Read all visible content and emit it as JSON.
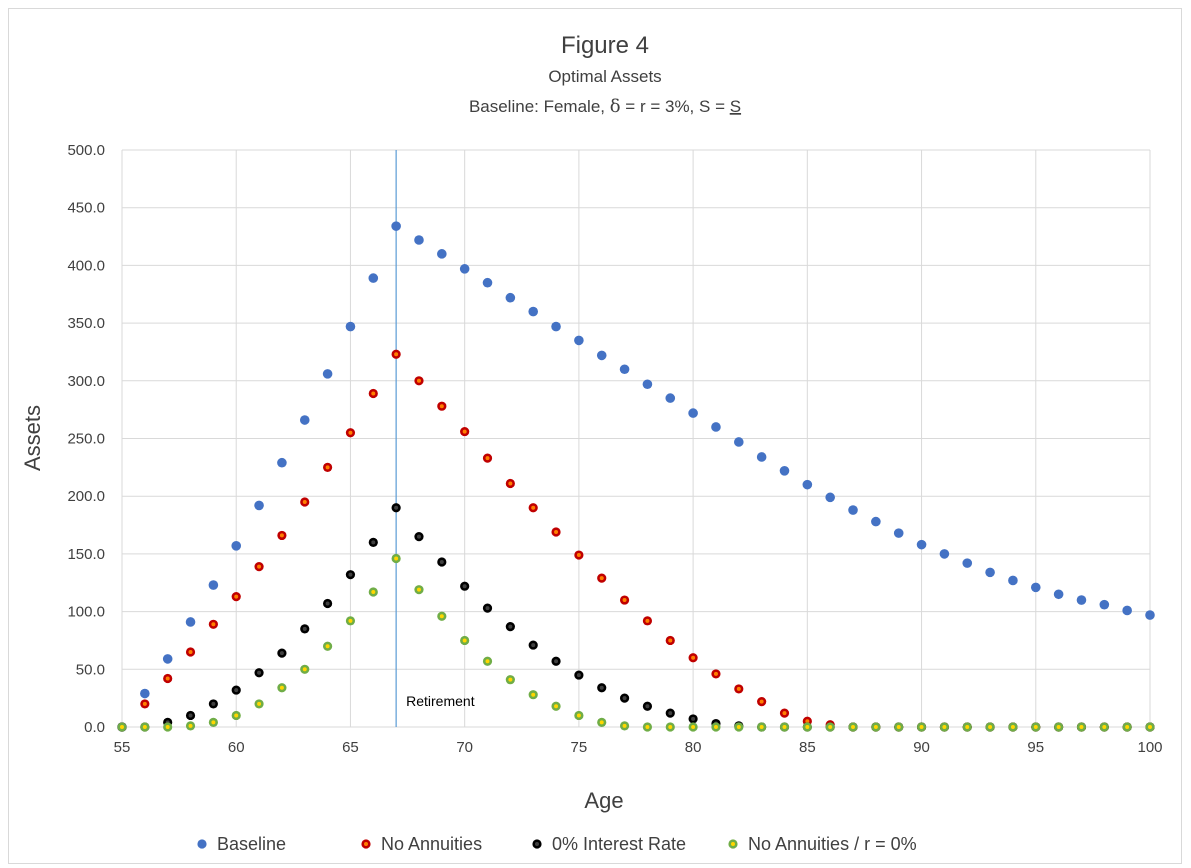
{
  "chart_data": {
    "type": "scatter",
    "title": "Figure 4",
    "subtitle": "Optimal Assets",
    "subtitle2_prefix": "Baseline: Female, ",
    "subtitle2_delta": "δ",
    "subtitle2_mid": " = r = 3%, S = ",
    "subtitle2_s": "S",
    "xlabel": "Age",
    "ylabel": "Assets",
    "xlim": [
      55,
      100
    ],
    "ylim": [
      0,
      500
    ],
    "xticks": [
      55,
      60,
      65,
      70,
      75,
      80,
      85,
      90,
      95,
      100
    ],
    "xtick_labels": [
      "55",
      "60",
      "65",
      "70",
      "75",
      "80",
      "85",
      "90",
      "95",
      "100"
    ],
    "yticks": [
      0,
      50,
      100,
      150,
      200,
      250,
      300,
      350,
      400,
      450,
      500
    ],
    "ytick_labels": [
      "0.0",
      "50.0",
      "100.0",
      "150.0",
      "200.0",
      "250.0",
      "300.0",
      "350.0",
      "400.0",
      "450.0",
      "500.0"
    ],
    "vertical_gridlines": true,
    "horizontal_gridlines": true,
    "legend_position": "bottom",
    "retirement_line_x": 67,
    "retirement_label": "Retirement",
    "retirement_line_color": "#5b9bd5",
    "x": [
      55,
      56,
      57,
      58,
      59,
      60,
      61,
      62,
      63,
      64,
      65,
      66,
      67,
      68,
      69,
      70,
      71,
      72,
      73,
      74,
      75,
      76,
      77,
      78,
      79,
      80,
      81,
      82,
      83,
      84,
      85,
      86,
      87,
      88,
      89,
      90,
      91,
      92,
      93,
      94,
      95,
      96,
      97,
      98,
      99,
      100
    ],
    "series": [
      {
        "name": "Baseline",
        "color": "#4472c4",
        "values": [
          0,
          29,
          59,
          91,
          123,
          157,
          192,
          229,
          266,
          306,
          347,
          389,
          434,
          422,
          410,
          397,
          385,
          372,
          360,
          347,
          335,
          322,
          310,
          297,
          285,
          272,
          260,
          247,
          234,
          222,
          210,
          199,
          188,
          178,
          168,
          158,
          150,
          142,
          134,
          127,
          121,
          115,
          110,
          106,
          101,
          97
        ]
      },
      {
        "name": "No Annuities",
        "color": "#c00000",
        "inner": "#ff7f00",
        "values": [
          0,
          20,
          42,
          65,
          89,
          113,
          139,
          166,
          195,
          225,
          255,
          289,
          323,
          300,
          278,
          256,
          233,
          211,
          190,
          169,
          149,
          129,
          110,
          92,
          75,
          60,
          46,
          33,
          22,
          12,
          5,
          2,
          0,
          0,
          0,
          0,
          0,
          0,
          0,
          0,
          0,
          0,
          0,
          0,
          0,
          0
        ]
      },
      {
        "name": "0% Interest Rate",
        "color": "#000000",
        "inner": "#404040",
        "values": [
          0,
          0,
          4,
          10,
          20,
          32,
          47,
          64,
          85,
          107,
          132,
          160,
          190,
          165,
          143,
          122,
          103,
          87,
          71,
          57,
          45,
          34,
          25,
          18,
          12,
          7,
          3,
          1,
          0,
          0,
          0,
          0,
          0,
          0,
          0,
          0,
          0,
          0,
          0,
          0,
          0,
          0,
          0,
          0,
          0,
          0
        ]
      },
      {
        "name": "No Annuities / r = 0%",
        "color": "#70ad47",
        "inner": "#ffd700",
        "values": [
          0,
          0,
          0,
          1,
          4,
          10,
          20,
          34,
          50,
          70,
          92,
          117,
          146,
          119,
          96,
          75,
          57,
          41,
          28,
          18,
          10,
          4,
          1,
          0,
          0,
          0,
          0,
          0,
          0,
          0,
          0,
          0,
          0,
          0,
          0,
          0,
          0,
          0,
          0,
          0,
          0,
          0,
          0,
          0,
          0,
          0
        ]
      }
    ]
  }
}
